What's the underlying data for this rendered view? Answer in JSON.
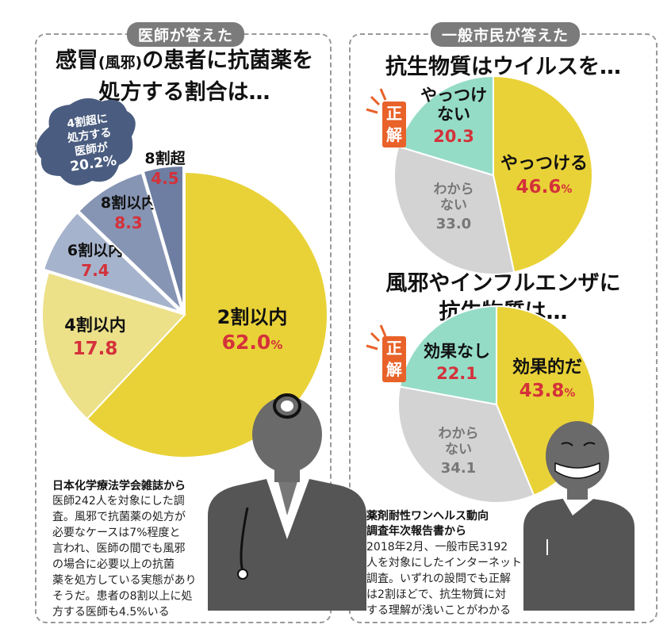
{
  "left_panel": {
    "tag": "医師が答えた",
    "title_a": "感冒",
    "title_paren": "(風邪)",
    "title_b": "の患者に抗菌薬を",
    "title_line2": "処方する割合は…",
    "badge": {
      "line1": "4割超に",
      "line2": "処方する",
      "line3": "医師が",
      "value": "20.2%"
    },
    "source_title": "日本化学療法学会雑誌から",
    "source_body": "医師242人を対象にした調\n査。風邪で抗菌薬の処方が\n必要なケースは7%程度と\n言われ、医師の間でも風邪\nの場合に必要以上の抗菌\n薬を処方している実態があり\nそうだ。患者の8割以上に処\n方する医師も4.5%いる"
  },
  "right_panel": {
    "tag": "一般市民が答えた",
    "q1": "抗生物質はウイルスを…",
    "q2_line1": "風邪やインフルエンザに",
    "q2_line2": "抗生物質は…",
    "correct_badge_top": "正",
    "correct_badge_bottom": "解",
    "source_title_line1": "薬剤耐性ワンヘルス動向",
    "source_title_line2": "調査年次報告書から",
    "source_body": "2018年2月、一般市民3192\n人を対象にしたインターネット\n調査。いずれの設問でも正解\nは2割ほどで、抗生物質に対\nする理解が浅いことがわかる"
  },
  "colors": {
    "yellow": "#e9d237",
    "pale_yellow": "#ece089",
    "blue_light": "#a6b3cc",
    "blue_mid": "#8795b4",
    "blue_dark": "#6d7ea2",
    "teal": "#95dcc7",
    "gray": "#d3d3d3",
    "red": "#d4313a",
    "badge": "#4a5d80",
    "correct": "#e8622a"
  },
  "chart_data": [
    {
      "type": "pie",
      "title": "感冒(風邪)の患者に抗菌薬を処方する割合は…",
      "unit": "%",
      "slices": [
        {
          "label": "2割以内",
          "value": 62.0,
          "display": "62.0",
          "suffix": "%"
        },
        {
          "label": "4割以内",
          "value": 17.8,
          "display": "17.8",
          "suffix": ""
        },
        {
          "label": "6割以内",
          "value": 7.4,
          "display": "7.4",
          "suffix": ""
        },
        {
          "label": "8割以内",
          "value": 8.3,
          "display": "8.3",
          "suffix": ""
        },
        {
          "label": "8割超",
          "value": 4.5,
          "display": "4.5",
          "suffix": ""
        }
      ]
    },
    {
      "type": "pie",
      "title": "抗生物質はウイルスを…",
      "unit": "%",
      "slices": [
        {
          "label": "やっつける",
          "value": 46.6,
          "display": "46.6",
          "suffix": "%"
        },
        {
          "label": "わから\nない",
          "value": 33.0,
          "display": "33.0",
          "suffix": ""
        },
        {
          "label": "やっつけ\nない",
          "value": 20.3,
          "display": "20.3",
          "suffix": ""
        }
      ]
    },
    {
      "type": "pie",
      "title": "風邪やインフルエンザに抗生物質は…",
      "unit": "%",
      "slices": [
        {
          "label": "効果的だ",
          "value": 43.8,
          "display": "43.8",
          "suffix": "%"
        },
        {
          "label": "わから\nない",
          "value": 34.1,
          "display": "34.1",
          "suffix": ""
        },
        {
          "label": "効果なし",
          "value": 22.1,
          "display": "22.1",
          "suffix": ""
        }
      ]
    }
  ]
}
